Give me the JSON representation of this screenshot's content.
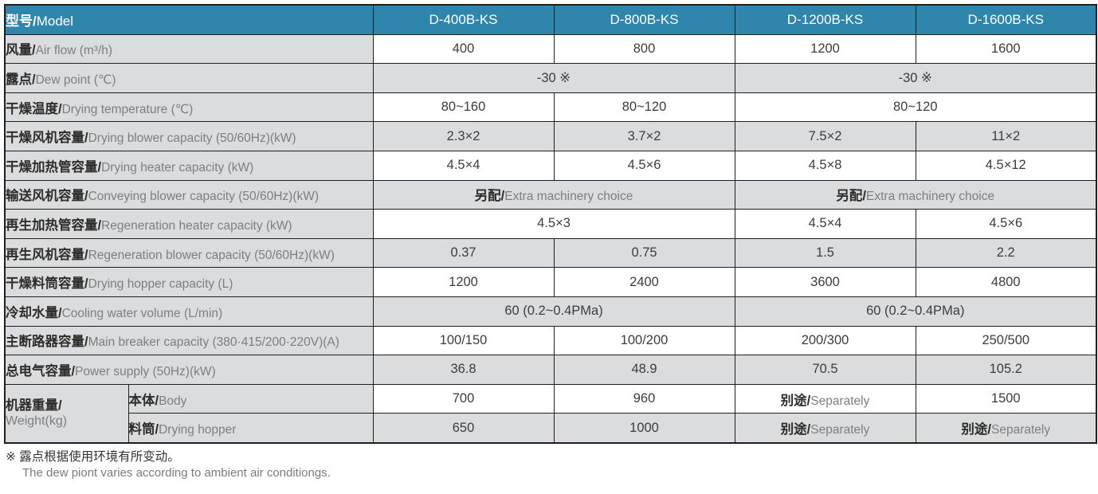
{
  "colors": {
    "accent_header_blue": "#2e86ac",
    "shaded_row_gray": "#dbdcdd",
    "border_dark": "#1f1f1f",
    "label_zh_text": "#2d2c2b",
    "label_en_text": "#7e7e7e",
    "value_text": "#3c3c3c"
  },
  "table": {
    "header": {
      "label_zh": "型号/",
      "label_en": "Model"
    },
    "models": [
      "D-400B-KS",
      "D-800B-KS",
      "D-1200B-KS",
      "D-1600B-KS"
    ],
    "rows": [
      {
        "label_zh": "风量/",
        "label_en": "Air flow (m³/h)",
        "shade": false,
        "cells": [
          {
            "t": "400"
          },
          {
            "t": "800"
          },
          {
            "t": "1200"
          },
          {
            "t": "1600"
          }
        ]
      },
      {
        "label_zh": "露点/",
        "label_en": "Dew point (℃)",
        "shade": true,
        "cells": [
          {
            "t": "-30 ※",
            "span": 2
          },
          {
            "t": "-30 ※",
            "span": 2
          }
        ]
      },
      {
        "label_zh": "干燥温度/",
        "label_en": "Drying temperature (℃)",
        "shade": false,
        "cells": [
          {
            "t": "80~160"
          },
          {
            "t": "80~120"
          },
          {
            "t": "80~120",
            "span": 2
          }
        ]
      },
      {
        "label_zh": "干燥风机容量/",
        "label_en": "Drying blower capacity (50/60Hz)(kW)",
        "shade": true,
        "cells": [
          {
            "t": "2.3×2"
          },
          {
            "t": "3.7×2"
          },
          {
            "t": "7.5×2"
          },
          {
            "t": "11×2"
          }
        ]
      },
      {
        "label_zh": "干燥加热管容量/",
        "label_en": "Drying heater capacity (kW)",
        "shade": false,
        "cells": [
          {
            "t": "4.5×4"
          },
          {
            "t": "4.5×6"
          },
          {
            "t": "4.5×8"
          },
          {
            "t": "4.5×12"
          }
        ]
      },
      {
        "label_zh": "输送风机容量/",
        "label_en": "Conveying blower capacity (50/60Hz)(kW)",
        "shade": true,
        "cells": [
          {
            "zh": "另配/",
            "en": "Extra machinery choice",
            "span": 2
          },
          {
            "zh": "另配/",
            "en": "Extra machinery choice",
            "span": 2
          }
        ]
      },
      {
        "label_zh": "再生加热管容量/",
        "label_en": "Regeneration heater capacity (kW)",
        "shade": false,
        "cells": [
          {
            "t": "4.5×3",
            "span": 2
          },
          {
            "t": "4.5×4"
          },
          {
            "t": "4.5×6"
          }
        ]
      },
      {
        "label_zh": "再生风机容量/",
        "label_en": "Regeneration blower capacity (50/60Hz)(kW)",
        "shade": true,
        "cells": [
          {
            "t": "0.37"
          },
          {
            "t": "0.75"
          },
          {
            "t": "1.5"
          },
          {
            "t": "2.2"
          }
        ]
      },
      {
        "label_zh": "干燥料筒容量/",
        "label_en": "Drying hopper capacity (L)",
        "shade": false,
        "cells": [
          {
            "t": "1200"
          },
          {
            "t": "2400"
          },
          {
            "t": "3600"
          },
          {
            "t": "4800"
          }
        ]
      },
      {
        "label_zh": "冷却水量/",
        "label_en": "Cooling water volume (L/min)",
        "shade": true,
        "cells": [
          {
            "t": "60 (0.2~0.4PMa)",
            "span": 2
          },
          {
            "t": "60 (0.2~0.4PMa)",
            "span": 2
          }
        ]
      },
      {
        "label_zh": "主断路器容量/",
        "label_en": "Main breaker capacity (380·415/200·220V)(A)",
        "shade": false,
        "cells": [
          {
            "t": "100/150"
          },
          {
            "t": "100/200"
          },
          {
            "t": "200/300"
          },
          {
            "t": "250/500"
          }
        ]
      },
      {
        "label_zh": "总电气容量/",
        "label_en": "Power supply (50Hz)(kW)",
        "shade": true,
        "cells": [
          {
            "t": "36.8"
          },
          {
            "t": "48.9"
          },
          {
            "t": "70.5"
          },
          {
            "t": "105.2"
          }
        ]
      }
    ],
    "weight": {
      "label_zh": "机器重量/",
      "label_en": "Weight(kg)",
      "rows": [
        {
          "sub_zh": "本体/",
          "sub_en": "Body",
          "shade": false,
          "cells": [
            {
              "t": "700"
            },
            {
              "t": "960"
            },
            {
              "zh": "别途/",
              "en": "Separately"
            },
            {
              "t": "1500"
            }
          ]
        },
        {
          "sub_zh": "料筒/",
          "sub_en": "Drying hopper",
          "shade": true,
          "cells": [
            {
              "t": "650"
            },
            {
              "t": "1000"
            },
            {
              "zh": "别途/",
              "en": "Separately"
            },
            {
              "zh": "别途/",
              "en": "Separately"
            }
          ]
        }
      ]
    }
  },
  "notes": {
    "line_zh": "※ 露点根据使用环境有所变动。",
    "line_en": "The dew piont varies according to ambient air conditiongs."
  }
}
